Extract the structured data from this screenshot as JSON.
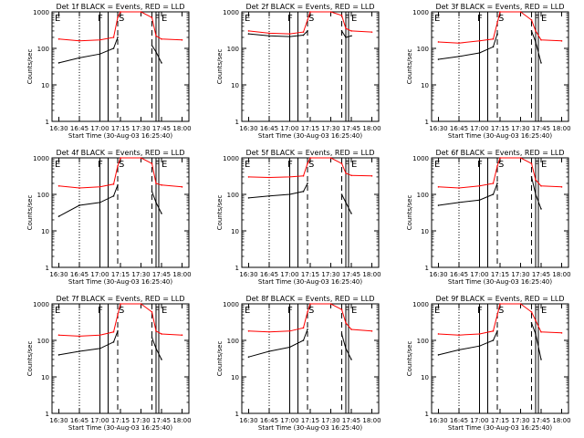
{
  "chart_data": {
    "type": "line",
    "layout": "3x3 grid",
    "shared": {
      "xlabel": "Start Time (30-Aug-03 16:25:40)",
      "ylabel": "Counts/sec",
      "y_scale": "log",
      "ylim": [
        1,
        1000
      ],
      "y_tick_labels": [
        "1",
        "10",
        "100",
        "1000"
      ],
      "xlim_minutes_after_1625": [
        0,
        100
      ],
      "x_tick_labels": [
        "16:30",
        "16:45",
        "17:00",
        "17:15",
        "17:30",
        "17:45",
        "18:00"
      ],
      "series_colors": {
        "events": "#000000",
        "lld": "#ff0000"
      },
      "period_letters": [
        "E",
        "F",
        "S",
        "F",
        "E"
      ],
      "vertical_markers": {
        "dotted": "16:45",
        "solid": [
          "17:00",
          "17:06",
          "17:41",
          "17:43"
        ],
        "dashed": [
          "17:13",
          "17:38"
        ]
      }
    },
    "panels": [
      {
        "title": "Det 1f BLACK = Events, RED = LLD",
        "letters": [
          "E",
          "F",
          "S",
          "F",
          "E"
        ],
        "x": [
          "16:30",
          "16:45",
          "17:00",
          "17:10",
          "17:13",
          "17:15",
          "17:30",
          "17:38",
          "17:41",
          "17:45",
          "18:00"
        ],
        "events": [
          40,
          55,
          70,
          100,
          200,
          null,
          null,
          120,
          80,
          40,
          null
        ],
        "lld": [
          180,
          160,
          170,
          200,
          700,
          1000,
          1000,
          700,
          220,
          180,
          170
        ]
      },
      {
        "title": "Det 2f BLACK = Events, RED = LLD",
        "letters": [
          "E",
          "F",
          "S",
          "F",
          "E"
        ],
        "x": [
          "16:30",
          "16:45",
          "17:00",
          "17:10",
          "17:13",
          "17:15",
          "17:30",
          "17:38",
          "17:41",
          "17:45",
          "18:00"
        ],
        "events": [
          250,
          220,
          210,
          230,
          300,
          null,
          null,
          300,
          200,
          220,
          null
        ],
        "lld": [
          300,
          260,
          250,
          280,
          600,
          1000,
          1000,
          800,
          350,
          300,
          280
        ]
      },
      {
        "title": "Det 3f BLACK = Events, RED = LLD",
        "letters": [
          "E",
          "F",
          "S",
          "F",
          "E"
        ],
        "x": [
          "16:30",
          "16:45",
          "17:00",
          "17:10",
          "17:13",
          "17:15",
          "17:30",
          "17:38",
          "17:41",
          "17:45",
          "18:00"
        ],
        "events": [
          50,
          60,
          75,
          110,
          250,
          null,
          null,
          300,
          150,
          40,
          null
        ],
        "lld": [
          150,
          140,
          160,
          180,
          500,
          1000,
          1000,
          600,
          300,
          170,
          160
        ]
      },
      {
        "title": "Det 4f BLACK = Events, RED = LLD",
        "letters": [
          "E",
          "F",
          "S",
          "F",
          "E"
        ],
        "x": [
          "16:30",
          "16:45",
          "17:00",
          "17:10",
          "17:13",
          "17:15",
          "17:30",
          "17:38",
          "17:41",
          "17:45",
          "18:00"
        ],
        "events": [
          25,
          50,
          60,
          90,
          180,
          null,
          null,
          120,
          60,
          30,
          null
        ],
        "lld": [
          170,
          150,
          160,
          190,
          600,
          1000,
          1000,
          700,
          200,
          180,
          160
        ]
      },
      {
        "title": "Det 5f BLACK = Events, RED = LLD",
        "letters": [
          "E",
          "F",
          "S",
          "F",
          "E"
        ],
        "x": [
          "16:30",
          "16:45",
          "17:00",
          "17:10",
          "17:13",
          "17:15",
          "17:30",
          "17:38",
          "17:41",
          "17:45",
          "18:00"
        ],
        "events": [
          80,
          90,
          100,
          120,
          200,
          null,
          null,
          100,
          60,
          30,
          null
        ],
        "lld": [
          300,
          290,
          300,
          320,
          700,
          1000,
          1000,
          700,
          380,
          330,
          320
        ]
      },
      {
        "title": "Det 6f BLACK = Events, RED = LLD",
        "letters": [
          "E",
          "F",
          "S",
          "F",
          "E"
        ],
        "x": [
          "16:30",
          "16:45",
          "17:00",
          "17:10",
          "17:13",
          "17:15",
          "17:30",
          "17:38",
          "17:41",
          "17:45",
          "18:00"
        ],
        "events": [
          50,
          60,
          70,
          100,
          200,
          null,
          null,
          300,
          100,
          40,
          null
        ],
        "lld": [
          160,
          150,
          170,
          200,
          600,
          1000,
          1000,
          700,
          250,
          170,
          160
        ]
      },
      {
        "title": "Det 7f BLACK = Events, RED = LLD",
        "letters": [
          "E",
          "F",
          "S",
          "F",
          "E"
        ],
        "x": [
          "16:30",
          "16:45",
          "17:00",
          "17:10",
          "17:13",
          "17:15",
          "17:30",
          "17:38",
          "17:41",
          "17:45",
          "18:00"
        ],
        "events": [
          40,
          50,
          60,
          90,
          180,
          null,
          null,
          120,
          60,
          30,
          null
        ],
        "lld": [
          140,
          130,
          140,
          170,
          500,
          1000,
          1000,
          600,
          180,
          150,
          140
        ]
      },
      {
        "title": "Det 8f BLACK = Events, RED = LLD",
        "letters": [
          "E",
          "F",
          "S",
          "F",
          "E"
        ],
        "x": [
          "16:30",
          "16:45",
          "17:00",
          "17:10",
          "17:13",
          "17:15",
          "17:30",
          "17:38",
          "17:41",
          "17:45",
          "18:00"
        ],
        "events": [
          35,
          50,
          65,
          100,
          200,
          null,
          null,
          150,
          60,
          30,
          null
        ],
        "lld": [
          180,
          170,
          180,
          220,
          600,
          1000,
          1000,
          700,
          300,
          200,
          180
        ]
      },
      {
        "title": "Det 9f BLACK = Events, RED = LLD",
        "letters": [
          "E",
          "F",
          "S",
          "F",
          "E"
        ],
        "x": [
          "16:30",
          "16:45",
          "17:00",
          "17:10",
          "17:13",
          "17:15",
          "17:30",
          "17:38",
          "17:41",
          "17:45",
          "18:00"
        ],
        "events": [
          40,
          55,
          70,
          100,
          180,
          null,
          null,
          300,
          150,
          30,
          null
        ],
        "lld": [
          150,
          140,
          150,
          180,
          500,
          1000,
          1000,
          600,
          350,
          170,
          160
        ]
      }
    ]
  }
}
